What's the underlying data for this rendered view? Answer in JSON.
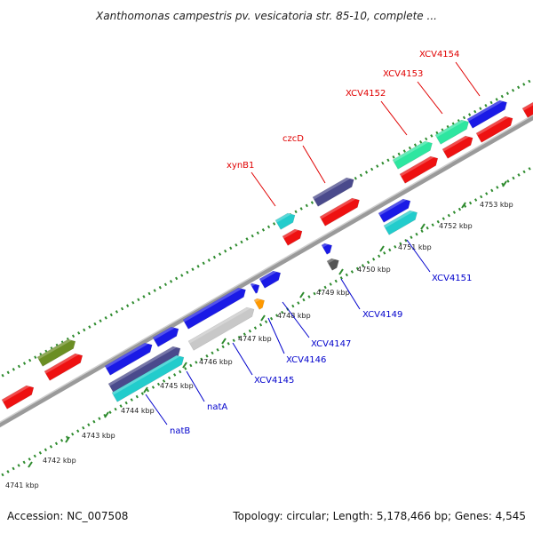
{
  "title": "Xanthomonas campestris pv. vesicatoria str. 85-10, complete ...",
  "footer": {
    "accession": "Accession: NC_007508",
    "stats": "Topology: circular; Length: 5,178,466 bp; Genes: 4,545"
  },
  "colors": {
    "backbone": "#8a8a8a",
    "tick": "#2e8b2e",
    "label_upper": "#e00000",
    "label_lower": "#0000cc",
    "gene_red": "#ee1111",
    "gene_blue": "#1a1ae6",
    "gene_green": "#2ee6a0",
    "gene_olive": "#6b8e23",
    "gene_slate": "#4a4a8c",
    "gene_cyan": "#22cccc",
    "gene_gray": "#c8c8c8",
    "gene_orange": "#ff9900",
    "gene_darkgray": "#555555"
  },
  "scale": {
    "unit": "kbp",
    "ticks": [
      "4741 kbp",
      "4742 kbp",
      "4743 kbp",
      "4744 kbp",
      "4745 kbp",
      "4746 kbp",
      "4747 kbp",
      "4748 kbp",
      "4749 kbp",
      "4750 kbp",
      "4751 kbp",
      "4752 kbp",
      "4753 kbp"
    ]
  },
  "labels_upper": [
    "xynB1",
    "czcD",
    "XCV4152",
    "XCV4153",
    "XCV4154"
  ],
  "labels_lower": [
    "natB",
    "natA",
    "XCV4145",
    "XCV4146",
    "XCV4147",
    "XCV4149",
    "XCV4151"
  ]
}
